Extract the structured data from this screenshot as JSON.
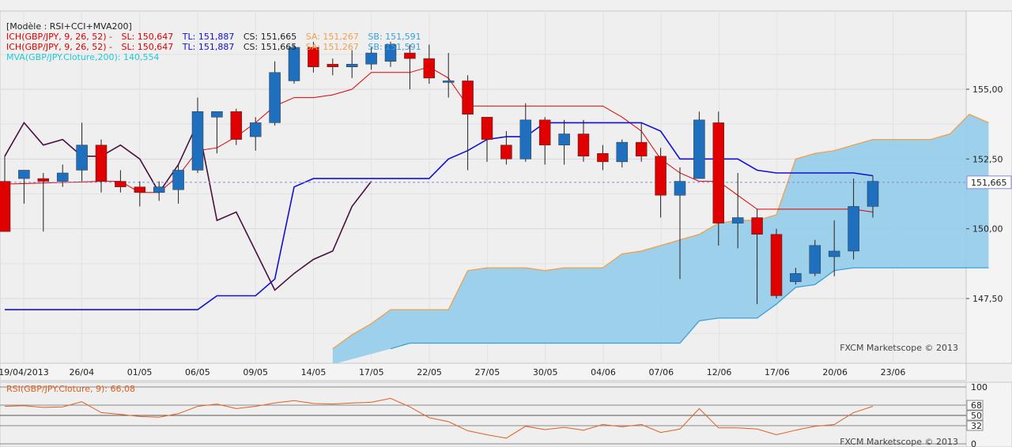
{
  "colors": {
    "background": "#efefef",
    "grid": "#d8d8d8",
    "bull": "#1f6fbf",
    "bear": "#e00000",
    "tenkan": "#e00000",
    "kijun": "#1010d8",
    "chikou": "#4a1040",
    "cloud": "#97cdea",
    "span_a": "#f0a04a",
    "span_b": "#3aa0dd",
    "rsi": "#e06020",
    "crosshair": "#8888dd"
  },
  "legend": {
    "model": "[Modèle : RSI+CCI+MVA200]",
    "ich1": {
      "prefix": "ICH(GBP/JPY, 9, 26, 52) -",
      "sl": "SL: 150,647",
      "tl": "TL: 151,887",
      "cs": "CS: 151,665",
      "sa": "SA: 151,267",
      "sb": "SB: 151,591"
    },
    "ich2": {
      "prefix": "ICH(GBP/JPY, 9, 26, 52) -",
      "sl": "SL: 150,647",
      "tl": "TL: 151,887",
      "cs": "CS: 151,665",
      "sa": "SA: 151,267",
      "sb": "SB: 151,591"
    },
    "mva": "MVA(GBP/JPY.Cloture,200): 140,554"
  },
  "watermark_main": "FXCM Marketscope © 2013",
  "watermark_rsi": "FXCM Marketscope © 2013",
  "current_price_label": "151,665",
  "rsi_legend": "RSI(GBP/JPY.Cloture, 9): 66,08",
  "chart_data": [
    {
      "type": "candlestick",
      "symbol": "GBP/JPY",
      "ylim": [
        145.5,
        157.5
      ],
      "y_ticks": [
        "147,50",
        "150,00",
        "152,50",
        "155,00"
      ],
      "x_ticks": [
        "19/04/2013",
        "26/04",
        "01/05",
        "06/05",
        "09/05",
        "14/05",
        "17/05",
        "22/05",
        "27/05",
        "30/05",
        "04/06",
        "07/06",
        "12/06",
        "17/06",
        "20/06",
        "23/06"
      ],
      "current_price": 151.665,
      "candles": [
        {
          "x": 0,
          "o": 151.7,
          "h": 152.6,
          "l": 149.9,
          "c": 149.9
        },
        {
          "x": 1,
          "o": 151.8,
          "h": 152.1,
          "l": 150.9,
          "c": 152.1
        },
        {
          "x": 2,
          "o": 151.8,
          "h": 152.0,
          "l": 149.9,
          "c": 151.7
        },
        {
          "x": 3,
          "o": 151.7,
          "h": 152.3,
          "l": 151.5,
          "c": 152.0
        },
        {
          "x": 4,
          "o": 152.1,
          "h": 153.8,
          "l": 151.7,
          "c": 153.0
        },
        {
          "x": 5,
          "o": 153.0,
          "h": 153.2,
          "l": 151.3,
          "c": 151.7
        },
        {
          "x": 6,
          "o": 151.7,
          "h": 152.1,
          "l": 151.3,
          "c": 151.5
        },
        {
          "x": 7,
          "o": 151.5,
          "h": 151.7,
          "l": 150.8,
          "c": 151.3
        },
        {
          "x": 8,
          "o": 151.3,
          "h": 151.7,
          "l": 151.0,
          "c": 151.5
        },
        {
          "x": 9,
          "o": 151.4,
          "h": 152.3,
          "l": 150.9,
          "c": 152.1
        },
        {
          "x": 10,
          "o": 152.1,
          "h": 154.7,
          "l": 152.0,
          "c": 154.2
        },
        {
          "x": 11,
          "o": 154.0,
          "h": 154.2,
          "l": 152.7,
          "c": 154.2
        },
        {
          "x": 12,
          "o": 154.2,
          "h": 154.3,
          "l": 153.0,
          "c": 153.2
        },
        {
          "x": 13,
          "o": 153.3,
          "h": 154.0,
          "l": 152.8,
          "c": 153.8
        },
        {
          "x": 14,
          "o": 153.8,
          "h": 156.0,
          "l": 153.7,
          "c": 155.6
        },
        {
          "x": 15,
          "o": 155.3,
          "h": 156.6,
          "l": 155.2,
          "c": 156.5
        },
        {
          "x": 16,
          "o": 156.5,
          "h": 156.7,
          "l": 155.6,
          "c": 155.8
        },
        {
          "x": 17,
          "o": 155.9,
          "h": 156.1,
          "l": 155.5,
          "c": 155.8
        },
        {
          "x": 18,
          "o": 155.8,
          "h": 156.4,
          "l": 155.4,
          "c": 155.9
        },
        {
          "x": 19,
          "o": 155.9,
          "h": 156.5,
          "l": 155.7,
          "c": 156.3
        },
        {
          "x": 20,
          "o": 156.0,
          "h": 156.7,
          "l": 155.8,
          "c": 156.6
        },
        {
          "x": 21,
          "o": 156.3,
          "h": 156.6,
          "l": 155.0,
          "c": 156.1
        },
        {
          "x": 22,
          "o": 156.1,
          "h": 156.6,
          "l": 155.2,
          "c": 155.4
        },
        {
          "x": 23,
          "o": 155.3,
          "h": 156.3,
          "l": 154.7,
          "c": 155.3
        },
        {
          "x": 24,
          "o": 155.3,
          "h": 155.5,
          "l": 152.1,
          "c": 154.1
        },
        {
          "x": 25,
          "o": 154.0,
          "h": 154.0,
          "l": 152.4,
          "c": 153.2
        },
        {
          "x": 26,
          "o": 153.0,
          "h": 153.5,
          "l": 152.3,
          "c": 152.5
        },
        {
          "x": 27,
          "o": 152.5,
          "h": 154.5,
          "l": 152.4,
          "c": 153.9
        },
        {
          "x": 28,
          "o": 153.9,
          "h": 154.0,
          "l": 152.3,
          "c": 153.0
        },
        {
          "x": 29,
          "o": 153.0,
          "h": 153.9,
          "l": 152.3,
          "c": 153.4
        },
        {
          "x": 30,
          "o": 153.4,
          "h": 153.9,
          "l": 152.4,
          "c": 152.6
        },
        {
          "x": 31,
          "o": 152.7,
          "h": 153.0,
          "l": 152.1,
          "c": 152.4
        },
        {
          "x": 32,
          "o": 152.4,
          "h": 153.2,
          "l": 152.2,
          "c": 153.1
        },
        {
          "x": 33,
          "o": 153.1,
          "h": 153.8,
          "l": 152.4,
          "c": 152.6
        },
        {
          "x": 34,
          "o": 152.6,
          "h": 152.9,
          "l": 150.4,
          "c": 151.2
        },
        {
          "x": 35,
          "o": 151.2,
          "h": 152.2,
          "l": 148.2,
          "c": 151.7
        },
        {
          "x": 36,
          "o": 151.8,
          "h": 154.2,
          "l": 151.8,
          "c": 153.9
        },
        {
          "x": 37,
          "o": 153.8,
          "h": 154.2,
          "l": 149.4,
          "c": 150.2
        },
        {
          "x": 38,
          "o": 150.2,
          "h": 152.0,
          "l": 149.3,
          "c": 150.4
        },
        {
          "x": 39,
          "o": 150.4,
          "h": 150.7,
          "l": 147.3,
          "c": 149.8
        },
        {
          "x": 40,
          "o": 149.8,
          "h": 150.0,
          "l": 147.5,
          "c": 147.6
        },
        {
          "x": 41,
          "o": 148.1,
          "h": 148.6,
          "l": 148.0,
          "c": 148.4
        },
        {
          "x": 42,
          "o": 148.4,
          "h": 149.6,
          "l": 148.3,
          "c": 149.4
        },
        {
          "x": 43,
          "o": 149.0,
          "h": 150.3,
          "l": 148.3,
          "c": 149.2
        },
        {
          "x": 44,
          "o": 149.2,
          "h": 151.8,
          "l": 148.9,
          "c": 150.8
        },
        {
          "x": 45,
          "o": 150.8,
          "h": 151.9,
          "l": 150.4,
          "c": 151.7
        }
      ],
      "tenkan": [
        [
          0,
          151.6
        ],
        [
          5,
          151.7
        ],
        [
          6,
          151.7
        ],
        [
          7,
          151.3
        ],
        [
          8,
          151.3
        ],
        [
          9,
          151.9
        ],
        [
          10,
          152.8
        ],
        [
          11,
          152.9
        ],
        [
          12,
          153.3
        ],
        [
          13,
          153.8
        ],
        [
          14,
          154.4
        ],
        [
          15,
          154.7
        ],
        [
          16,
          154.7
        ],
        [
          17,
          154.8
        ],
        [
          18,
          155.0
        ],
        [
          19,
          155.6
        ],
        [
          20,
          155.6
        ],
        [
          21,
          155.6
        ],
        [
          22,
          155.8
        ],
        [
          23,
          155.4
        ],
        [
          24,
          154.4
        ],
        [
          25,
          154.4
        ],
        [
          26,
          154.4
        ],
        [
          27,
          154.4
        ],
        [
          28,
          154.4
        ],
        [
          29,
          154.4
        ],
        [
          30,
          154.4
        ],
        [
          31,
          154.4
        ],
        [
          32,
          154.0
        ],
        [
          33,
          153.5
        ],
        [
          34,
          152.5
        ],
        [
          35,
          152.0
        ],
        [
          36,
          151.7
        ],
        [
          37,
          151.7
        ],
        [
          38,
          151.2
        ],
        [
          39,
          150.7
        ],
        [
          40,
          150.7
        ],
        [
          41,
          150.7
        ],
        [
          42,
          150.7
        ],
        [
          43,
          150.7
        ],
        [
          44,
          150.7
        ],
        [
          45,
          150.6
        ]
      ],
      "kijun": [
        [
          0,
          147.1
        ],
        [
          10,
          147.1
        ],
        [
          11,
          147.6
        ],
        [
          12,
          147.6
        ],
        [
          13,
          147.6
        ],
        [
          14,
          148.2
        ],
        [
          15,
          151.5
        ],
        [
          16,
          151.8
        ],
        [
          17,
          151.8
        ],
        [
          18,
          151.8
        ],
        [
          19,
          151.8
        ],
        [
          20,
          151.8
        ],
        [
          21,
          151.8
        ],
        [
          22,
          151.8
        ],
        [
          23,
          152.5
        ],
        [
          24,
          152.8
        ],
        [
          25,
          153.2
        ],
        [
          26,
          153.3
        ],
        [
          27,
          153.3
        ],
        [
          28,
          153.8
        ],
        [
          29,
          153.8
        ],
        [
          30,
          153.8
        ],
        [
          31,
          153.8
        ],
        [
          32,
          153.8
        ],
        [
          33,
          153.8
        ],
        [
          34,
          153.5
        ],
        [
          35,
          152.5
        ],
        [
          36,
          152.5
        ],
        [
          37,
          152.5
        ],
        [
          38,
          152.5
        ],
        [
          39,
          152.1
        ],
        [
          40,
          152.0
        ],
        [
          41,
          152.0
        ],
        [
          42,
          152.0
        ],
        [
          43,
          152.0
        ],
        [
          44,
          152.0
        ],
        [
          45,
          151.9
        ]
      ],
      "chikou": [
        [
          0,
          152.6
        ],
        [
          1,
          153.8
        ],
        [
          2,
          153.0
        ],
        [
          3,
          153.2
        ],
        [
          4,
          152.6
        ],
        [
          5,
          152.6
        ],
        [
          6,
          153.0
        ],
        [
          7,
          152.5
        ],
        [
          8,
          151.3
        ],
        [
          9,
          152.3
        ],
        [
          10,
          153.8
        ],
        [
          11,
          150.3
        ],
        [
          12,
          150.6
        ],
        [
          13,
          149.2
        ],
        [
          14,
          147.8
        ],
        [
          15,
          148.4
        ],
        [
          16,
          148.9
        ],
        [
          17,
          149.2
        ],
        [
          18,
          150.8
        ],
        [
          19,
          151.7
        ]
      ],
      "span_a": [
        [
          17,
          145.7
        ],
        [
          18,
          146.2
        ],
        [
          19,
          146.6
        ],
        [
          20,
          147.1
        ],
        [
          21,
          147.1
        ],
        [
          22,
          147.1
        ],
        [
          23,
          147.1
        ],
        [
          24,
          148.5
        ],
        [
          25,
          148.6
        ],
        [
          26,
          148.6
        ],
        [
          27,
          148.6
        ],
        [
          28,
          148.5
        ],
        [
          29,
          148.6
        ],
        [
          30,
          148.6
        ],
        [
          31,
          148.6
        ],
        [
          32,
          149.1
        ],
        [
          33,
          149.2
        ],
        [
          34,
          149.4
        ],
        [
          35,
          149.6
        ],
        [
          36,
          149.8
        ],
        [
          37,
          150.2
        ],
        [
          38,
          150.3
        ],
        [
          39,
          150.3
        ],
        [
          40,
          150.5
        ],
        [
          41,
          152.5
        ],
        [
          42,
          152.7
        ],
        [
          43,
          152.8
        ],
        [
          44,
          153.0
        ],
        [
          45,
          153.2
        ],
        [
          46,
          153.2
        ],
        [
          47,
          153.2
        ],
        [
          48,
          153.2
        ],
        [
          49,
          153.4
        ],
        [
          50,
          154.1
        ],
        [
          51,
          153.8
        ]
      ],
      "span_b": [
        [
          20,
          145.7
        ],
        [
          21,
          145.9
        ],
        [
          22,
          145.9
        ],
        [
          23,
          145.9
        ],
        [
          24,
          145.9
        ],
        [
          25,
          145.9
        ],
        [
          26,
          145.9
        ],
        [
          27,
          145.9
        ],
        [
          28,
          145.9
        ],
        [
          29,
          145.9
        ],
        [
          30,
          145.9
        ],
        [
          31,
          145.9
        ],
        [
          32,
          145.9
        ],
        [
          33,
          145.9
        ],
        [
          34,
          145.9
        ],
        [
          35,
          145.9
        ],
        [
          36,
          146.7
        ],
        [
          37,
          146.8
        ],
        [
          38,
          146.8
        ],
        [
          39,
          146.8
        ],
        [
          40,
          147.3
        ],
        [
          41,
          147.9
        ],
        [
          42,
          148.0
        ],
        [
          43,
          148.5
        ],
        [
          44,
          148.6
        ],
        [
          45,
          148.6
        ],
        [
          46,
          148.6
        ],
        [
          47,
          148.6
        ],
        [
          48,
          148.6
        ],
        [
          49,
          148.6
        ],
        [
          50,
          148.6
        ],
        [
          51,
          148.6
        ]
      ]
    },
    {
      "type": "line",
      "title": "RSI(GBP/JPY.Cloture, 9): 66,08",
      "ylim": [
        0,
        100
      ],
      "y_ticks": [
        "100",
        "68",
        "50",
        "32",
        "0"
      ],
      "levels": [
        100,
        68,
        50,
        32,
        0
      ],
      "rsi": [
        [
          0,
          66
        ],
        [
          1,
          67
        ],
        [
          2,
          64
        ],
        [
          3,
          65
        ],
        [
          4,
          74
        ],
        [
          5,
          55
        ],
        [
          6,
          52
        ],
        [
          7,
          48
        ],
        [
          8,
          47
        ],
        [
          9,
          53
        ],
        [
          10,
          66
        ],
        [
          11,
          70
        ],
        [
          12,
          62
        ],
        [
          13,
          66
        ],
        [
          14,
          72
        ],
        [
          15,
          76
        ],
        [
          16,
          71
        ],
        [
          17,
          70
        ],
        [
          18,
          72
        ],
        [
          19,
          73
        ],
        [
          20,
          80
        ],
        [
          21,
          65
        ],
        [
          22,
          46
        ],
        [
          23,
          39
        ],
        [
          24,
          23
        ],
        [
          25,
          16
        ],
        [
          26,
          10
        ],
        [
          27,
          31
        ],
        [
          28,
          25
        ],
        [
          29,
          29
        ],
        [
          30,
          24
        ],
        [
          31,
          34
        ],
        [
          32,
          30
        ],
        [
          33,
          34
        ],
        [
          34,
          20
        ],
        [
          35,
          26
        ],
        [
          36,
          62
        ],
        [
          37,
          28
        ],
        [
          38,
          28
        ],
        [
          39,
          26
        ],
        [
          40,
          16
        ],
        [
          41,
          24
        ],
        [
          42,
          31
        ],
        [
          43,
          34
        ],
        [
          44,
          55
        ],
        [
          45,
          66
        ]
      ]
    }
  ]
}
